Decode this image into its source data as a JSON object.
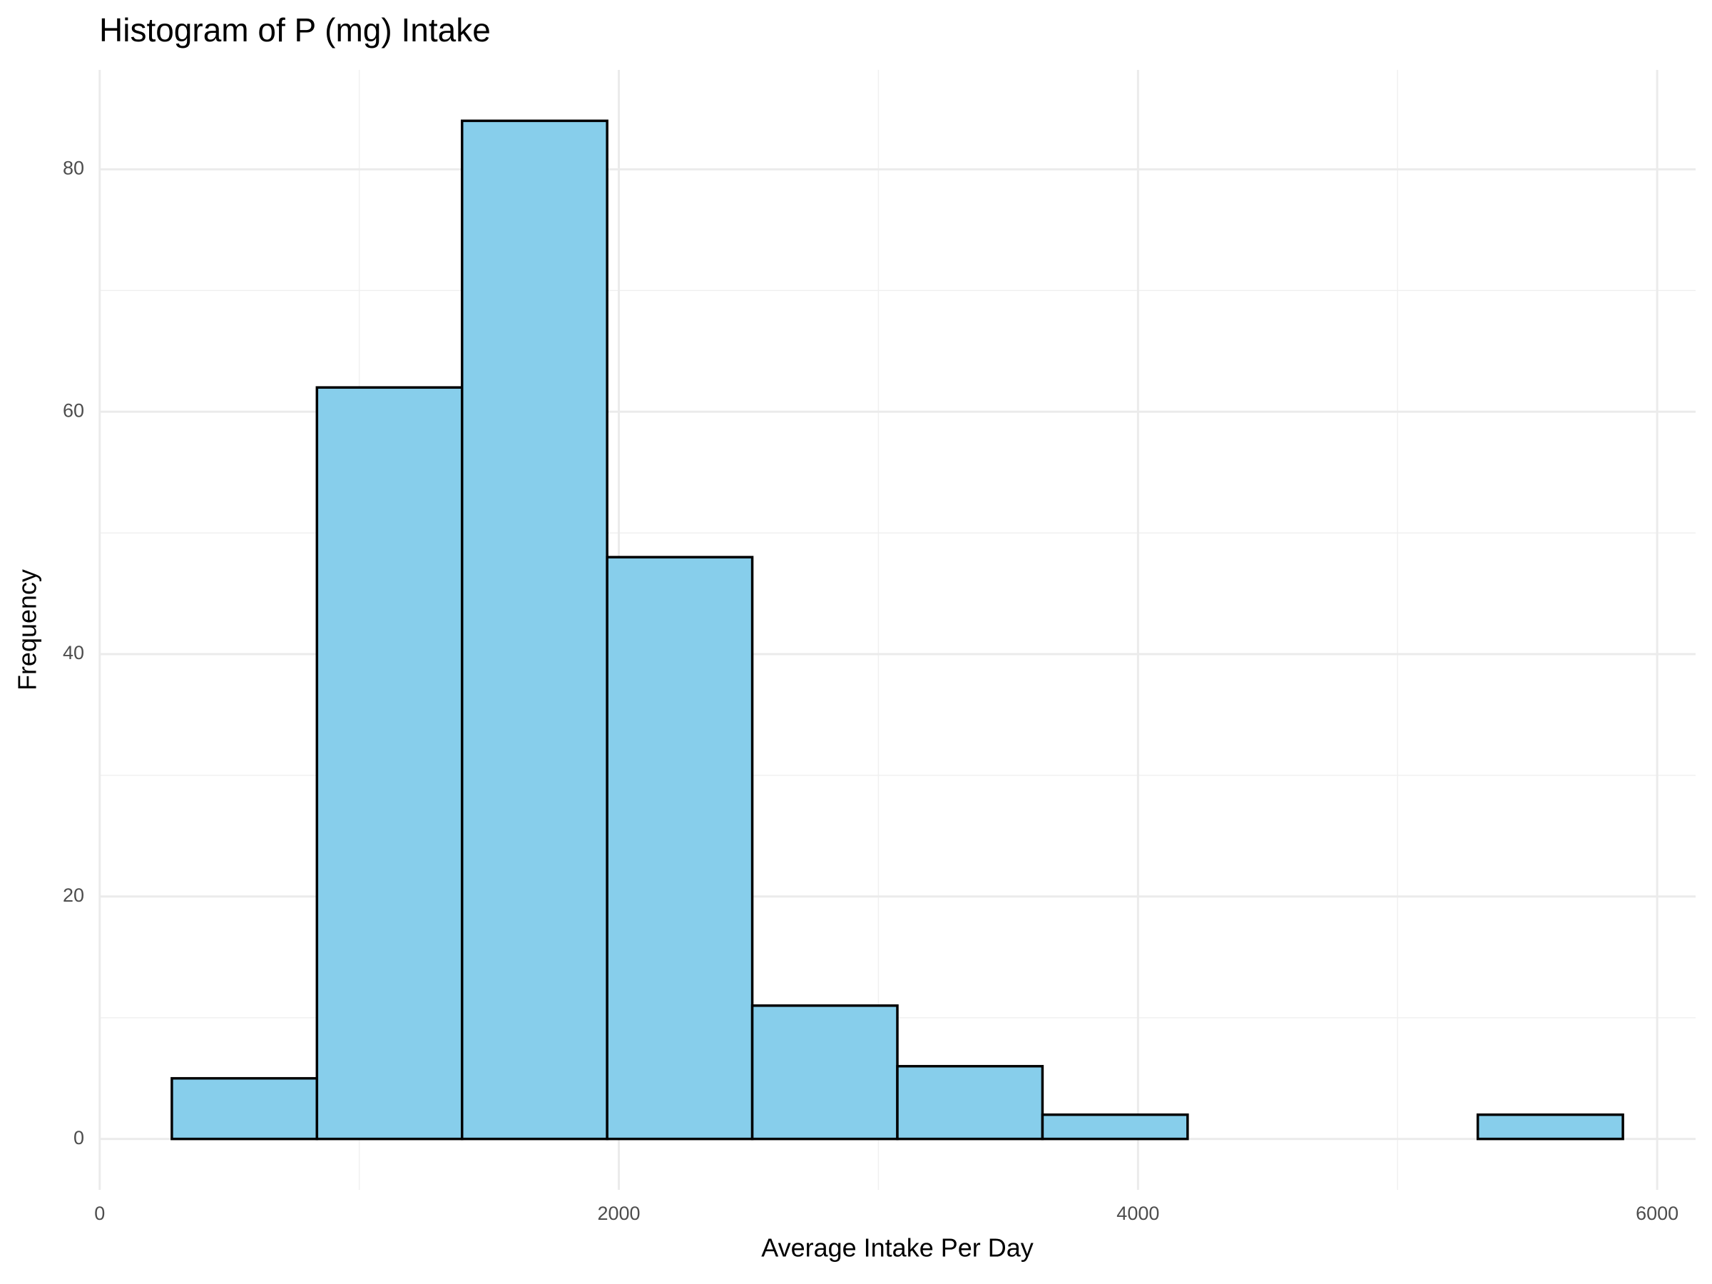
{
  "chart_data": {
    "type": "histogram",
    "title": "Histogram of P (mg) Intake",
    "x_label": "Average Intake Per Day",
    "y_label": "Frequency",
    "bins": [
      278,
      837,
      1396,
      1955,
      2514,
      3073,
      3632,
      4191,
      4750,
      5309,
      5868
    ],
    "values": [
      5,
      62,
      84,
      48,
      11,
      6,
      2,
      0,
      0,
      2
    ],
    "color": "#87ceeb",
    "edge_color": "#000000",
    "xlim": [
      -2,
      6148
    ],
    "ylim": [
      -4.2,
      88.2
    ],
    "xticks": [
      0,
      2000,
      4000,
      6000
    ],
    "yticks": [
      0,
      20,
      40,
      60,
      80
    ],
    "xminor": [
      1000,
      3000,
      5000
    ],
    "yminor": [
      10,
      30,
      50,
      70
    ],
    "grid": true
  }
}
